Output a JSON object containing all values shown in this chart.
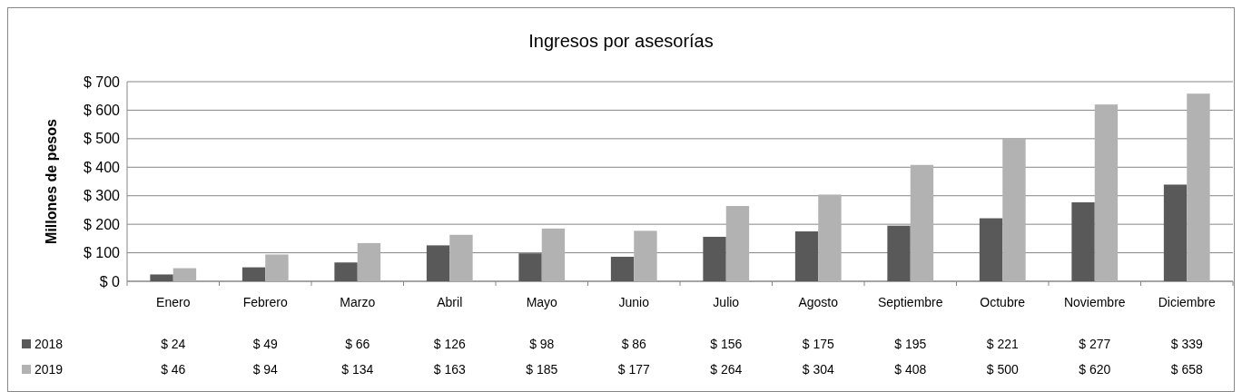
{
  "chart_data": {
    "type": "bar",
    "title": "Ingresos por asesorías",
    "ylabel": "Millones de pesos",
    "categories": [
      "Enero",
      "Febrero",
      "Marzo",
      "Abril",
      "Mayo",
      "Junio",
      "Julio",
      "Agosto",
      "Septiembre",
      "Octubre",
      "Noviembre",
      "Diciembre"
    ],
    "series": [
      {
        "name": "2018",
        "color": "#595959",
        "values": [
          24,
          49,
          66,
          126,
          98,
          86,
          156,
          175,
          195,
          221,
          277,
          339
        ],
        "value_labels": [
          "$ 24",
          "$ 49",
          "$ 66",
          "$ 126",
          "$ 98",
          "$ 86",
          "$ 156",
          "$ 175",
          "$ 195",
          "$ 221",
          "$ 277",
          "$ 339"
        ]
      },
      {
        "name": "2019",
        "color": "#b2b2b2",
        "values": [
          46,
          94,
          134,
          163,
          185,
          177,
          264,
          304,
          408,
          500,
          620,
          658
        ],
        "value_labels": [
          "$ 46",
          "$ 94",
          "$ 134",
          "$ 163",
          "$ 185",
          "$ 177",
          "$ 264",
          "$ 304",
          "$ 408",
          "$ 500",
          "$ 620",
          "$ 658"
        ]
      }
    ],
    "ylim": [
      0,
      700
    ],
    "yticks": [
      {
        "value": 0,
        "label": "$ 0"
      },
      {
        "value": 100,
        "label": "$ 100"
      },
      {
        "value": 200,
        "label": "$ 200"
      },
      {
        "value": 300,
        "label": "$ 300"
      },
      {
        "value": 400,
        "label": "$ 400"
      },
      {
        "value": 500,
        "label": "$ 500"
      },
      {
        "value": 600,
        "label": "$ 600"
      },
      {
        "value": 700,
        "label": "$ 700"
      }
    ],
    "grid": "y",
    "legend": "bottom"
  }
}
